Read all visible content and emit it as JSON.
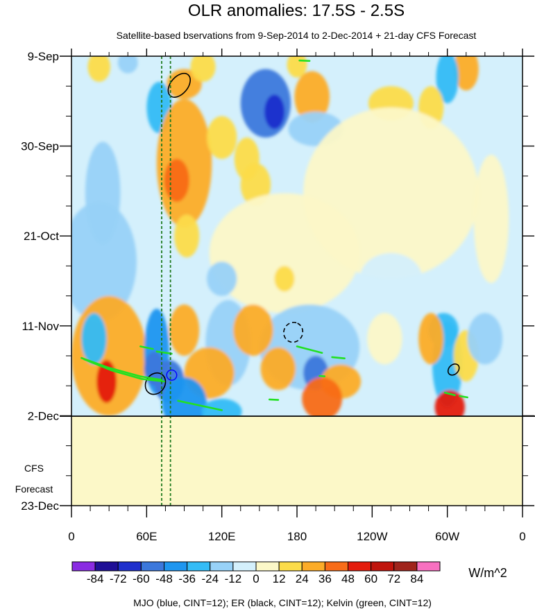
{
  "chart_data": {
    "type": "heatmap",
    "title": "OLR anomalies: 17.5S - 2.5S",
    "subtitle": "Satellite-based bservations from 9-Sep-2014 to 2-Dec-2014 + 21-day CFS Forecast",
    "x_ticks": [
      {
        "lon": 0,
        "label": "0"
      },
      {
        "lon": 60,
        "label": "60E"
      },
      {
        "lon": 120,
        "label": "120E"
      },
      {
        "lon": 180,
        "label": "180"
      },
      {
        "lon": 240,
        "label": "120W"
      },
      {
        "lon": 300,
        "label": "60W"
      },
      {
        "lon": 360,
        "label": "0"
      }
    ],
    "y_ticks": [
      {
        "day": 0,
        "label": "9-Sep"
      },
      {
        "day": 21,
        "label": "30-Sep"
      },
      {
        "day": 42,
        "label": "21-Oct"
      },
      {
        "day": 63,
        "label": "11-Nov"
      },
      {
        "day": 84,
        "label": "2-Dec"
      },
      {
        "day": 105,
        "label": "23-Dec"
      }
    ],
    "xlim": [
      0,
      360
    ],
    "ylim_days": [
      0,
      105
    ],
    "observation_end_day": 84,
    "forecast_label_lines": [
      "CFS",
      "Forecast"
    ],
    "forecast_start_date": "2-Dec",
    "reference_lines_lon": [
      72,
      79
    ],
    "colorbar": {
      "levels": [
        -84,
        -72,
        -60,
        -48,
        -36,
        -24,
        -12,
        0,
        12,
        24,
        36,
        48,
        60,
        72,
        84
      ],
      "labels": [
        "-84",
        "-72",
        "-60",
        "-48",
        "-36",
        "-24",
        "-12",
        "0",
        "12",
        "24",
        "36",
        "48",
        "60",
        "72",
        "84"
      ],
      "colors": [
        "#8a2be2",
        "#1e0f96",
        "#1e2fcc",
        "#3c78dc",
        "#1e96f0",
        "#34bcf6",
        "#98d2f8",
        "#d4f0fc",
        "#fcf8c8",
        "#fcdc4a",
        "#fcac28",
        "#f86c18",
        "#e41c0c",
        "#c0140c",
        "#a0241c",
        "#f870c0"
      ],
      "unit": "W/m^2"
    },
    "contour_note": "MJO (blue, CINT=12); ER (black, CINT=12); Kelvin (green, CINT=12)",
    "anomaly_blobs": [
      {
        "lon": 22,
        "day": 2.5,
        "w": 9,
        "h": 3.5,
        "v": 20
      },
      {
        "lon": 45,
        "day": 1.5,
        "w": 8,
        "h": 2.5,
        "v": -20
      },
      {
        "lon": 90,
        "day": 6.5,
        "w": 14,
        "h": 3.5,
        "v": 28
      },
      {
        "lon": 105,
        "day": 2.5,
        "w": 10,
        "h": 3.5,
        "v": 20
      },
      {
        "lon": 70,
        "day": 12,
        "w": 10,
        "h": 6,
        "v": -35
      },
      {
        "lon": 155,
        "day": 11,
        "w": 20,
        "h": 8,
        "v": -50
      },
      {
        "lon": 162,
        "day": 13,
        "w": 8,
        "h": 4,
        "v": -70
      },
      {
        "lon": 192,
        "day": 9.5,
        "w": 14,
        "h": 6,
        "v": 28
      },
      {
        "lon": 180,
        "day": 2,
        "w": 8,
        "h": 3,
        "v": 18
      },
      {
        "lon": 195,
        "day": 17,
        "w": 22,
        "h": 4,
        "v": -18
      },
      {
        "lon": 315,
        "day": 3,
        "w": 10,
        "h": 5,
        "v": 30
      },
      {
        "lon": 300,
        "day": 5,
        "w": 9,
        "h": 6,
        "v": -30
      },
      {
        "lon": 287,
        "day": 12,
        "w": 10,
        "h": 5,
        "v": 14
      },
      {
        "lon": 255,
        "day": 11,
        "w": 18,
        "h": 4,
        "v": 14
      },
      {
        "lon": 90,
        "day": 25,
        "w": 22,
        "h": 15,
        "v": 24
      },
      {
        "lon": 84,
        "day": 29,
        "w": 10,
        "h": 5,
        "v": 38
      },
      {
        "lon": 120,
        "day": 19,
        "w": 12,
        "h": 5,
        "v": 16
      },
      {
        "lon": 147,
        "day": 30,
        "w": 12,
        "h": 5,
        "v": 22
      },
      {
        "lon": 140,
        "day": 24,
        "w": 10,
        "h": 5,
        "v": 16
      },
      {
        "lon": 25,
        "day": 32,
        "w": 14,
        "h": 12,
        "v": -18
      },
      {
        "lon": 22,
        "day": 48,
        "w": 30,
        "h": 14,
        "v": -14
      },
      {
        "lon": 170,
        "day": 46,
        "w": 60,
        "h": 14,
        "v": 10
      },
      {
        "lon": 255,
        "day": 32,
        "w": 70,
        "h": 20,
        "v": 9
      },
      {
        "lon": 255,
        "day": 52,
        "w": 25,
        "h": 6,
        "v": -12
      },
      {
        "lon": 120,
        "day": 52,
        "w": 12,
        "h": 4,
        "v": -16
      },
      {
        "lon": 170,
        "day": 52,
        "w": 8,
        "h": 3,
        "v": 18
      },
      {
        "lon": 92,
        "day": 42,
        "w": 10,
        "h": 5,
        "v": 16
      },
      {
        "lon": 335,
        "day": 38,
        "w": 14,
        "h": 15,
        "v": 10
      },
      {
        "lon": 30,
        "day": 70,
        "w": 30,
        "h": 14,
        "v": 24
      },
      {
        "lon": 18,
        "day": 66,
        "w": 10,
        "h": 6,
        "v": -28
      },
      {
        "lon": 68,
        "day": 69,
        "w": 10,
        "h": 10,
        "v": -45
      },
      {
        "lon": 90,
        "day": 64,
        "w": 12,
        "h": 6,
        "v": 26
      },
      {
        "lon": 125,
        "day": 67,
        "w": 18,
        "h": 10,
        "v": -24
      },
      {
        "lon": 110,
        "day": 74,
        "w": 20,
        "h": 6,
        "v": 26
      },
      {
        "lon": 28,
        "day": 76,
        "w": 8,
        "h": 5,
        "v": 48
      },
      {
        "lon": 78,
        "day": 76,
        "w": 12,
        "h": 5,
        "v": -55
      },
      {
        "lon": 66,
        "day": 73,
        "w": 8,
        "h": 4,
        "v": -55
      },
      {
        "lon": 90,
        "day": 81,
        "w": 18,
        "h": 6,
        "v": -40
      },
      {
        "lon": 120,
        "day": 83,
        "w": 16,
        "h": 3,
        "v": -36
      },
      {
        "lon": 190,
        "day": 68,
        "w": 40,
        "h": 10,
        "v": -20
      },
      {
        "lon": 195,
        "day": 74,
        "w": 10,
        "h": 4,
        "v": -58
      },
      {
        "lon": 165,
        "day": 73,
        "w": 14,
        "h": 5,
        "v": 30
      },
      {
        "lon": 215,
        "day": 76,
        "w": 16,
        "h": 4,
        "v": 28
      },
      {
        "lon": 200,
        "day": 80,
        "w": 16,
        "h": 5,
        "v": 42
      },
      {
        "lon": 145,
        "day": 64,
        "w": 16,
        "h": 6,
        "v": 24
      },
      {
        "lon": 250,
        "day": 66,
        "w": 14,
        "h": 6,
        "v": 10
      },
      {
        "lon": 297,
        "day": 64,
        "w": 12,
        "h": 4,
        "v": -30
      },
      {
        "lon": 300,
        "day": 72,
        "w": 12,
        "h": 10,
        "v": -26
      },
      {
        "lon": 315,
        "day": 70,
        "w": 10,
        "h": 6,
        "v": 22
      },
      {
        "lon": 302,
        "day": 82,
        "w": 12,
        "h": 4,
        "v": 50
      },
      {
        "lon": 287,
        "day": 66,
        "w": 10,
        "h": 6,
        "v": 24
      },
      {
        "lon": 330,
        "day": 66,
        "w": 14,
        "h": 6,
        "v": -14
      }
    ],
    "mjo_contours": [
      {
        "lon": 80,
        "day": 74.5,
        "rx": 4,
        "ry": 1.2,
        "rot_deg": -20,
        "color": "#0000ff"
      }
    ],
    "er_contours": [
      {
        "lon": 67,
        "day": 76.5,
        "rx": 9,
        "ry": 2.2,
        "rot_deg": -55,
        "dashed": false
      },
      {
        "lon": 86,
        "day": 6.8,
        "rx": 11,
        "ry": 2,
        "rot_deg": -50,
        "dashed": false
      },
      {
        "lon": 177,
        "day": 64.5,
        "rx": 8,
        "ry": 2.2,
        "rot_deg": -65,
        "dashed": true
      },
      {
        "lon": 305,
        "day": 73.2,
        "rx": 5,
        "ry": 1.1,
        "rot_deg": -45,
        "dashed": false
      }
    ],
    "kelvin_contours": [
      {
        "path": [
          [
            8,
            70.5
          ],
          [
            30,
            72.8
          ],
          [
            55,
            74.8
          ],
          [
            72,
            75.6
          ]
        ],
        "closed": false
      },
      {
        "path": [
          [
            10,
            70.8
          ],
          [
            32,
            73.4
          ],
          [
            56,
            75.4
          ],
          [
            74,
            76.0
          ]
        ],
        "closed": false
      },
      {
        "path": [
          [
            68,
            69
          ],
          [
            80,
            69.5
          ]
        ],
        "closed": false
      },
      {
        "path": [
          [
            55,
            67.8
          ],
          [
            65,
            68.4
          ]
        ],
        "closed": false
      },
      {
        "path": [
          [
            85,
            80.5
          ],
          [
            120,
            82.7
          ]
        ],
        "closed": false
      },
      {
        "path": [
          [
            180,
            67.8
          ],
          [
            200,
            69.3
          ]
        ],
        "closed": false
      },
      {
        "path": [
          [
            208,
            70.3
          ],
          [
            218,
            70.6
          ]
        ],
        "closed": false
      },
      {
        "path": [
          [
            198,
            74.7
          ],
          [
            202,
            74.8
          ]
        ],
        "closed": false
      },
      {
        "path": [
          [
            158,
            80.2
          ],
          [
            165,
            80.3
          ]
        ],
        "closed": false
      },
      {
        "path": [
          [
            298,
            78.6
          ],
          [
            306,
            79.2
          ]
        ],
        "closed": false
      },
      {
        "path": [
          [
            310,
            79.4
          ],
          [
            316,
            79.7
          ]
        ],
        "closed": false
      },
      {
        "path": [
          [
            182,
            1
          ],
          [
            190,
            1.1
          ]
        ],
        "closed": false
      }
    ]
  }
}
